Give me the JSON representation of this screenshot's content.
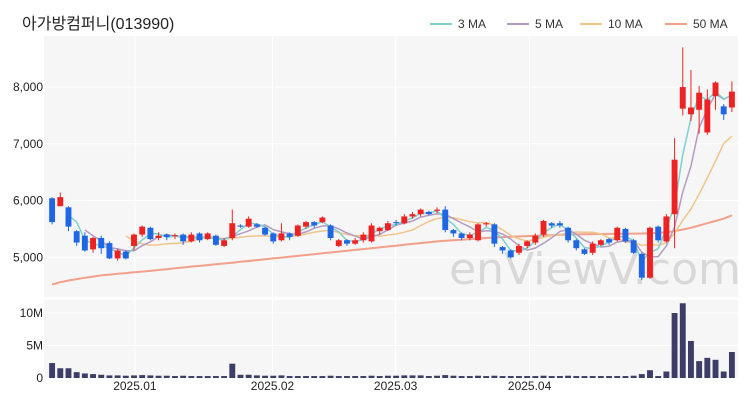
{
  "title": "아가방컴퍼니(013990)",
  "watermark": "enViewV.com",
  "colors": {
    "up": "#ee2222",
    "down": "#1f66e5",
    "volume": "#3d3d68",
    "ma3": "#7ecfcf",
    "ma5": "#b39bc4",
    "ma10": "#f1c48a",
    "ma50": "#f2a08a",
    "panel": "#f6f6f6",
    "grid": "#ffffff"
  },
  "chart_data": [
    {
      "type": "candlestick",
      "title": "아가방컴퍼니(013990)",
      "legend": [
        "3 MA",
        "5 MA",
        "10 MA",
        "50 MA"
      ],
      "legend_position": "top-right",
      "y_ticks": [
        "5,000",
        "6,000",
        "7,000",
        "8,000"
      ],
      "x_ticks": [
        "2025.01",
        "2025.02",
        "2025.03",
        "2025.04"
      ],
      "y_range": [
        4300,
        8900
      ],
      "candles": [
        [
          6040,
          5620,
          6060,
          5580
        ],
        [
          5900,
          6060,
          6140,
          5900
        ],
        [
          5880,
          5540,
          5900,
          5460
        ],
        [
          5460,
          5260,
          5480,
          5200
        ],
        [
          5380,
          5120,
          5440,
          5100
        ],
        [
          5140,
          5340,
          5360,
          5080
        ],
        [
          5340,
          5160,
          5380,
          5060
        ],
        [
          5250,
          4980,
          5280,
          4970
        ],
        [
          4980,
          5120,
          5150,
          4940
        ],
        [
          5100,
          4980,
          5120,
          4960
        ],
        [
          5200,
          5400,
          5420,
          5120
        ],
        [
          5400,
          5540,
          5560,
          5360
        ],
        [
          5520,
          5320,
          5540,
          5300
        ],
        [
          5340,
          5380,
          5440,
          5300
        ],
        [
          5400,
          5360,
          5420,
          5300
        ],
        [
          5380,
          5390,
          5420,
          5320
        ],
        [
          5400,
          5280,
          5420,
          5220
        ],
        [
          5280,
          5400,
          5440,
          5260
        ],
        [
          5420,
          5300,
          5440,
          5260
        ],
        [
          5320,
          5420,
          5440,
          5300
        ],
        [
          5380,
          5220,
          5400,
          5200
        ],
        [
          5200,
          5300,
          5340,
          5180
        ],
        [
          5340,
          5600,
          5840,
          5300
        ],
        [
          5560,
          5540,
          5580,
          5520
        ],
        [
          5540,
          5680,
          5720,
          5520
        ],
        [
          5580,
          5540,
          5600,
          5520
        ],
        [
          5520,
          5400,
          5540,
          5380
        ],
        [
          5420,
          5280,
          5440,
          5240
        ],
        [
          5300,
          5420,
          5600,
          5280
        ],
        [
          5420,
          5360,
          5440,
          5300
        ],
        [
          5380,
          5560,
          5580,
          5360
        ],
        [
          5540,
          5620,
          5640,
          5500
        ],
        [
          5620,
          5560,
          5640,
          5520
        ],
        [
          5620,
          5700,
          5720,
          5600
        ],
        [
          5560,
          5340,
          5580,
          5300
        ],
        [
          5200,
          5300,
          5320,
          5180
        ],
        [
          5300,
          5240,
          5320,
          5200
        ],
        [
          5240,
          5300,
          5340,
          5220
        ],
        [
          5300,
          5400,
          5440,
          5260
        ],
        [
          5280,
          5560,
          5600,
          5260
        ],
        [
          5460,
          5520,
          5540,
          5400
        ],
        [
          5480,
          5600,
          5640,
          5460
        ],
        [
          5620,
          5600,
          5660,
          5560
        ],
        [
          5600,
          5720,
          5760,
          5580
        ],
        [
          5720,
          5760,
          5800,
          5680
        ],
        [
          5760,
          5840,
          5860,
          5720
        ],
        [
          5800,
          5760,
          5820,
          5740
        ],
        [
          5820,
          5840,
          5880,
          5780
        ],
        [
          5840,
          5480,
          5900,
          5440
        ],
        [
          5480,
          5420,
          5500,
          5360
        ],
        [
          5420,
          5340,
          5440,
          5300
        ],
        [
          5340,
          5400,
          5440,
          5300
        ],
        [
          5300,
          5580,
          5600,
          5280
        ],
        [
          5580,
          5600,
          5620,
          5540
        ],
        [
          5580,
          5240,
          5600,
          5180
        ],
        [
          5180,
          5120,
          5200,
          5060
        ],
        [
          5120,
          5000,
          5140,
          4980
        ],
        [
          5080,
          5200,
          5240,
          5040
        ],
        [
          5200,
          5280,
          5300,
          5160
        ],
        [
          5260,
          5380,
          5420,
          5220
        ],
        [
          5400,
          5640,
          5660,
          5360
        ],
        [
          5600,
          5560,
          5620,
          5520
        ],
        [
          5600,
          5560,
          5640,
          5520
        ],
        [
          5520,
          5300,
          5540,
          5260
        ],
        [
          5300,
          5160,
          5320,
          5120
        ],
        [
          5140,
          5060,
          5160,
          5040
        ],
        [
          5080,
          5240,
          5280,
          5040
        ],
        [
          5220,
          5300,
          5320,
          5200
        ],
        [
          5320,
          5260,
          5340,
          5220
        ],
        [
          5300,
          5520,
          5540,
          5280
        ],
        [
          5500,
          5280,
          5520,
          5260
        ],
        [
          5300,
          5080,
          5320,
          5060
        ],
        [
          5060,
          4640,
          5080,
          4600
        ],
        [
          4640,
          5520,
          5540,
          4620
        ],
        [
          5540,
          5300,
          5560,
          5260
        ],
        [
          5280,
          5720,
          5760,
          5260
        ],
        [
          5760,
          6720,
          7100,
          5160
        ],
        [
          7620,
          8000,
          8700,
          7500
        ],
        [
          7520,
          7640,
          8300,
          7400
        ],
        [
          7600,
          7900,
          8020,
          7180
        ],
        [
          7200,
          7780,
          7960,
          7160
        ],
        [
          7840,
          8080,
          8100,
          7600
        ],
        [
          7660,
          7520,
          7700,
          7420
        ],
        [
          7640,
          7920,
          8100,
          7560
        ]
      ],
      "moving_averages": {
        "ma3": [
          null,
          null,
          5740,
          5620,
          5306,
          5240,
          5206,
          5160,
          5086,
          5026,
          5166,
          5306,
          5420,
          5413,
          5353,
          5376,
          5343,
          5356,
          5326,
          5373,
          5313,
          5313,
          5373,
          5486,
          5606,
          5586,
          5540,
          5406,
          5366,
          5353,
          5446,
          5513,
          5580,
          5626,
          5533,
          5446,
          5293,
          5280,
          5313,
          5420,
          5493,
          5560,
          5573,
          5640,
          5693,
          5773,
          5786,
          5813,
          5693,
          5580,
          5413,
          5386,
          5440,
          5526,
          5473,
          5320,
          5120,
          5106,
          5160,
          5286,
          5433,
          5526,
          5586,
          5473,
          5340,
          5173,
          5153,
          5200,
          5266,
          5360,
          5366,
          5293,
          4933,
          5080,
          5153,
          5506,
          5913,
          6813,
          7453,
          7846,
          7773,
          7920,
          7793,
          7840
        ],
        "ma5": [
          null,
          null,
          null,
          null,
          5480,
          5380,
          5288,
          5172,
          5148,
          5116,
          5116,
          5204,
          5272,
          5364,
          5400,
          5376,
          5364,
          5358,
          5348,
          5358,
          5324,
          5328,
          5368,
          5416,
          5466,
          5532,
          5572,
          5488,
          5448,
          5416,
          5404,
          5448,
          5512,
          5552,
          5556,
          5500,
          5428,
          5376,
          5316,
          5360,
          5404,
          5484,
          5568,
          5600,
          5640,
          5708,
          5740,
          5764,
          5760,
          5680,
          5604,
          5536,
          5448,
          5468,
          5460,
          5408,
          5320,
          5200,
          5124,
          5164,
          5244,
          5344,
          5456,
          5488,
          5408,
          5300,
          5240,
          5180,
          5196,
          5268,
          5292,
          5288,
          5088,
          5008,
          5012,
          5200,
          5536,
          6152,
          6612,
          7280,
          7608,
          7880,
          7784,
          7860
        ],
        "ma10": [
          null,
          null,
          null,
          null,
          null,
          null,
          null,
          null,
          null,
          5374,
          5291,
          5239,
          5212,
          5219,
          5240,
          5245,
          5253,
          5283,
          5322,
          5366,
          5352,
          5323,
          5334,
          5352,
          5372,
          5376,
          5376,
          5364,
          5364,
          5364,
          5378,
          5410,
          5440,
          5464,
          5476,
          5434,
          5404,
          5380,
          5380,
          5394,
          5370,
          5392,
          5410,
          5442,
          5482,
          5560,
          5630,
          5684,
          5696,
          5696,
          5662,
          5628,
          5606,
          5612,
          5566,
          5482,
          5384,
          5324,
          5286,
          5314,
          5352,
          5384,
          5398,
          5434,
          5446,
          5440,
          5440,
          5412,
          5338,
          5340,
          5264,
          5266,
          5208,
          5228,
          5213,
          5253,
          5421,
          5654,
          5851,
          6112,
          6399,
          6697,
          7006,
          7134
        ],
        "ma50": [
          4520,
          4560,
          4590,
          4615,
          4640,
          4660,
          4680,
          4695,
          4710,
          4722,
          4735,
          4748,
          4760,
          4775,
          4790,
          4805,
          4820,
          4835,
          4848,
          4862,
          4876,
          4890,
          4905,
          4920,
          4935,
          4950,
          4965,
          4980,
          4995,
          5010,
          5025,
          5040,
          5055,
          5070,
          5085,
          5100,
          5115,
          5130,
          5145,
          5160,
          5175,
          5190,
          5205,
          5220,
          5235,
          5250,
          5265,
          5280,
          5290,
          5300,
          5310,
          5320,
          5330,
          5340,
          5348,
          5356,
          5362,
          5368,
          5374,
          5380,
          5385,
          5390,
          5395,
          5400,
          5404,
          5406,
          5408,
          5410,
          5412,
          5414,
          5416,
          5418,
          5420,
          5424,
          5430,
          5440,
          5460,
          5490,
          5520,
          5560,
          5600,
          5640,
          5680,
          5740
        ]
      }
    },
    {
      "type": "bar",
      "title": "",
      "y_ticks": [
        "0",
        "5M",
        "10M"
      ],
      "y_range": [
        0,
        12000000
      ],
      "values": [
        2300000,
        1500000,
        1500000,
        900000,
        700000,
        600000,
        500000,
        400000,
        400000,
        350000,
        400000,
        450000,
        400000,
        350000,
        350000,
        300000,
        350000,
        300000,
        300000,
        300000,
        300000,
        300000,
        2200000,
        500000,
        500000,
        400000,
        350000,
        350000,
        400000,
        300000,
        300000,
        300000,
        300000,
        300000,
        350000,
        300000,
        300000,
        300000,
        300000,
        350000,
        300000,
        350000,
        350000,
        400000,
        400000,
        400000,
        300000,
        350000,
        450000,
        350000,
        300000,
        300000,
        350000,
        300000,
        350000,
        300000,
        300000,
        300000,
        300000,
        300000,
        350000,
        300000,
        300000,
        350000,
        300000,
        300000,
        300000,
        300000,
        300000,
        300000,
        300000,
        350000,
        600000,
        1200000,
        300000,
        1000000,
        10000000,
        11500000,
        5700000,
        2600000,
        3100000,
        2800000,
        1000000,
        4000000
      ]
    }
  ]
}
